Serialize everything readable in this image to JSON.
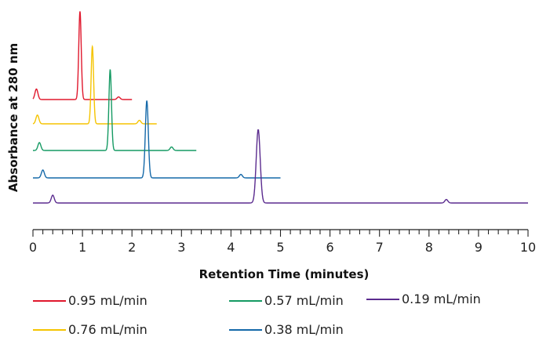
{
  "chart_data": {
    "type": "line",
    "xlabel": "Retention Time (minutes)",
    "ylabel": "Absorbance at 280 nm",
    "xlim": [
      0,
      10
    ],
    "x_ticks": [
      0,
      1,
      2,
      3,
      4,
      5,
      6,
      7,
      8,
      9,
      10
    ],
    "grid": false,
    "legend_position": "bottom",
    "series": [
      {
        "name": "0.95 mL/min",
        "color": "#e0182d",
        "peaks": [
          [
            0.07,
            0.12
          ],
          [
            0.95,
            1.0
          ],
          [
            1.73,
            0.03
          ]
        ],
        "x_end": 2.0
      },
      {
        "name": "0.76 mL/min",
        "color": "#f5c400",
        "peaks": [
          [
            0.09,
            0.1
          ],
          [
            1.2,
            0.88
          ],
          [
            2.15,
            0.04
          ]
        ],
        "x_end": 2.5
      },
      {
        "name": "0.57 mL/min",
        "color": "#159a63",
        "peaks": [
          [
            0.13,
            0.09
          ],
          [
            1.56,
            0.92
          ],
          [
            2.8,
            0.04
          ]
        ],
        "x_end": 3.3
      },
      {
        "name": "0.38 mL/min",
        "color": "#1569a9",
        "peaks": [
          [
            0.2,
            0.09
          ],
          [
            2.3,
            0.88
          ],
          [
            4.2,
            0.04
          ]
        ],
        "x_end": 5.0
      },
      {
        "name": "0.19 mL/min",
        "color": "#5b2c8f",
        "peaks": [
          [
            0.4,
            0.09
          ],
          [
            4.55,
            0.84
          ],
          [
            8.35,
            0.04
          ]
        ],
        "x_end": 10.0
      }
    ]
  }
}
